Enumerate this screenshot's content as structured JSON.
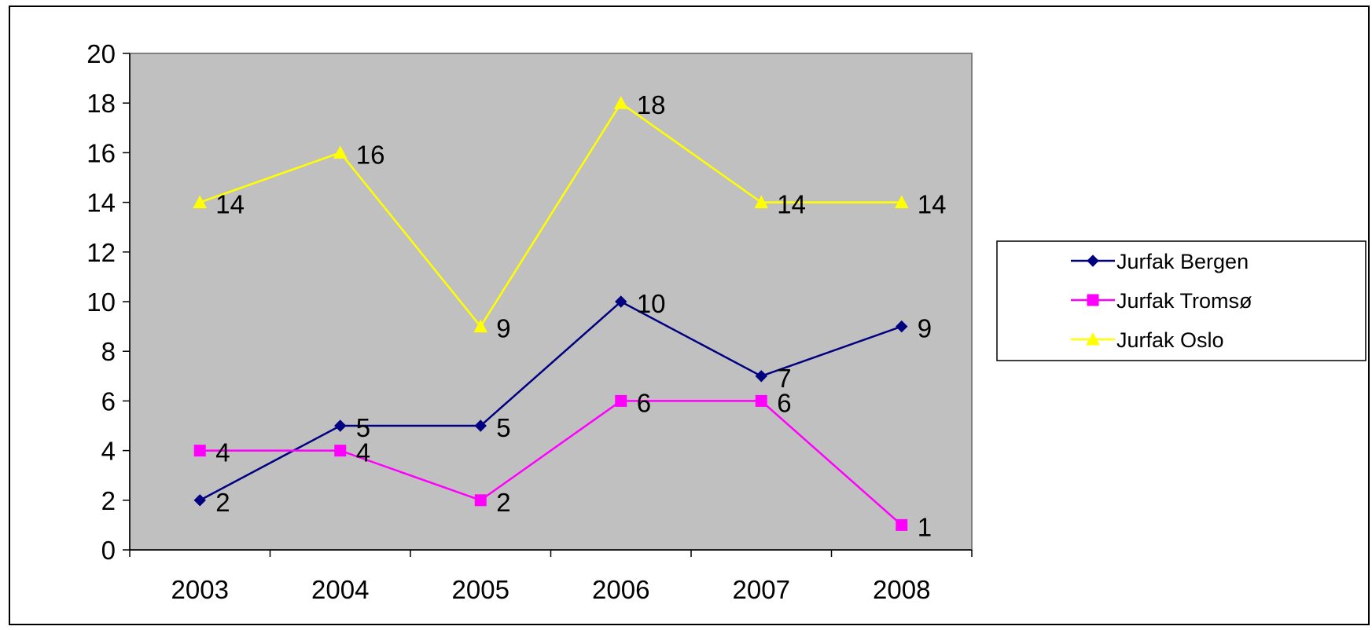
{
  "chart_data": {
    "type": "line",
    "categories": [
      "2003",
      "2004",
      "2005",
      "2006",
      "2007",
      "2008"
    ],
    "series": [
      {
        "name": "Jurfak Bergen",
        "values": [
          2,
          5,
          5,
          10,
          7,
          9
        ],
        "color": "#000080",
        "marker": "diamond"
      },
      {
        "name": "Jurfak Tromsø",
        "values": [
          4,
          4,
          2,
          6,
          6,
          1
        ],
        "color": "#FF00FF",
        "marker": "square"
      },
      {
        "name": "Jurfak Oslo",
        "values": [
          14,
          16,
          9,
          18,
          14,
          14
        ],
        "color": "#FFFF00",
        "marker": "triangle"
      }
    ],
    "y_ticks": [
      "0",
      "2",
      "4",
      "6",
      "8",
      "10",
      "12",
      "14",
      "16",
      "18",
      "20"
    ],
    "ylim": [
      0,
      20
    ],
    "plot_background": "#C0C0C0",
    "grid": false,
    "data_labels": true,
    "legend_position": "right"
  }
}
